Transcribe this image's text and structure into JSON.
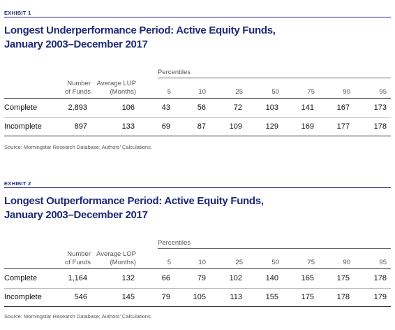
{
  "exhibits": [
    {
      "label": "EXHIBIT 1",
      "title_line1": "Longest Underperformance Period: Active Equity Funds,",
      "title_line2": "January 2003–December 2017",
      "percentiles_label": "Percentiles",
      "col1_line1": "Number",
      "col1_line2": "of Funds",
      "col2_line1": "Average LUP",
      "col2_line2": "(Months)",
      "percentiles": [
        "5",
        "10",
        "25",
        "50",
        "75",
        "90",
        "95"
      ],
      "rows": [
        {
          "name": "Complete",
          "funds": "2,893",
          "avg": "106",
          "values": [
            "43",
            "56",
            "72",
            "103",
            "141",
            "167",
            "173"
          ]
        },
        {
          "name": "Incomplete",
          "funds": "897",
          "avg": "133",
          "values": [
            "69",
            "87",
            "109",
            "129",
            "169",
            "177",
            "178"
          ]
        }
      ],
      "source": "Source: Morningstar Research Database; Authors’ Calculations."
    },
    {
      "label": "EXHIBIT 2",
      "title_line1": "Longest Outperformance Period: Active Equity Funds,",
      "title_line2": "January 2003–December 2017",
      "percentiles_label": "Percentiles",
      "col1_line1": "Number",
      "col1_line2": "of Funds",
      "col2_line1": "Average LOP",
      "col2_line2": "(Months)",
      "percentiles": [
        "5",
        "10",
        "25",
        "50",
        "75",
        "90",
        "95"
      ],
      "rows": [
        {
          "name": "Complete",
          "funds": "1,164",
          "avg": "132",
          "values": [
            "66",
            "79",
            "102",
            "140",
            "165",
            "175",
            "178"
          ]
        },
        {
          "name": "Incomplete",
          "funds": "546",
          "avg": "145",
          "values": [
            "79",
            "105",
            "113",
            "155",
            "175",
            "178",
            "179"
          ]
        }
      ],
      "source": "Source: Morningstar Research Database; Authors’ Calculations."
    }
  ]
}
